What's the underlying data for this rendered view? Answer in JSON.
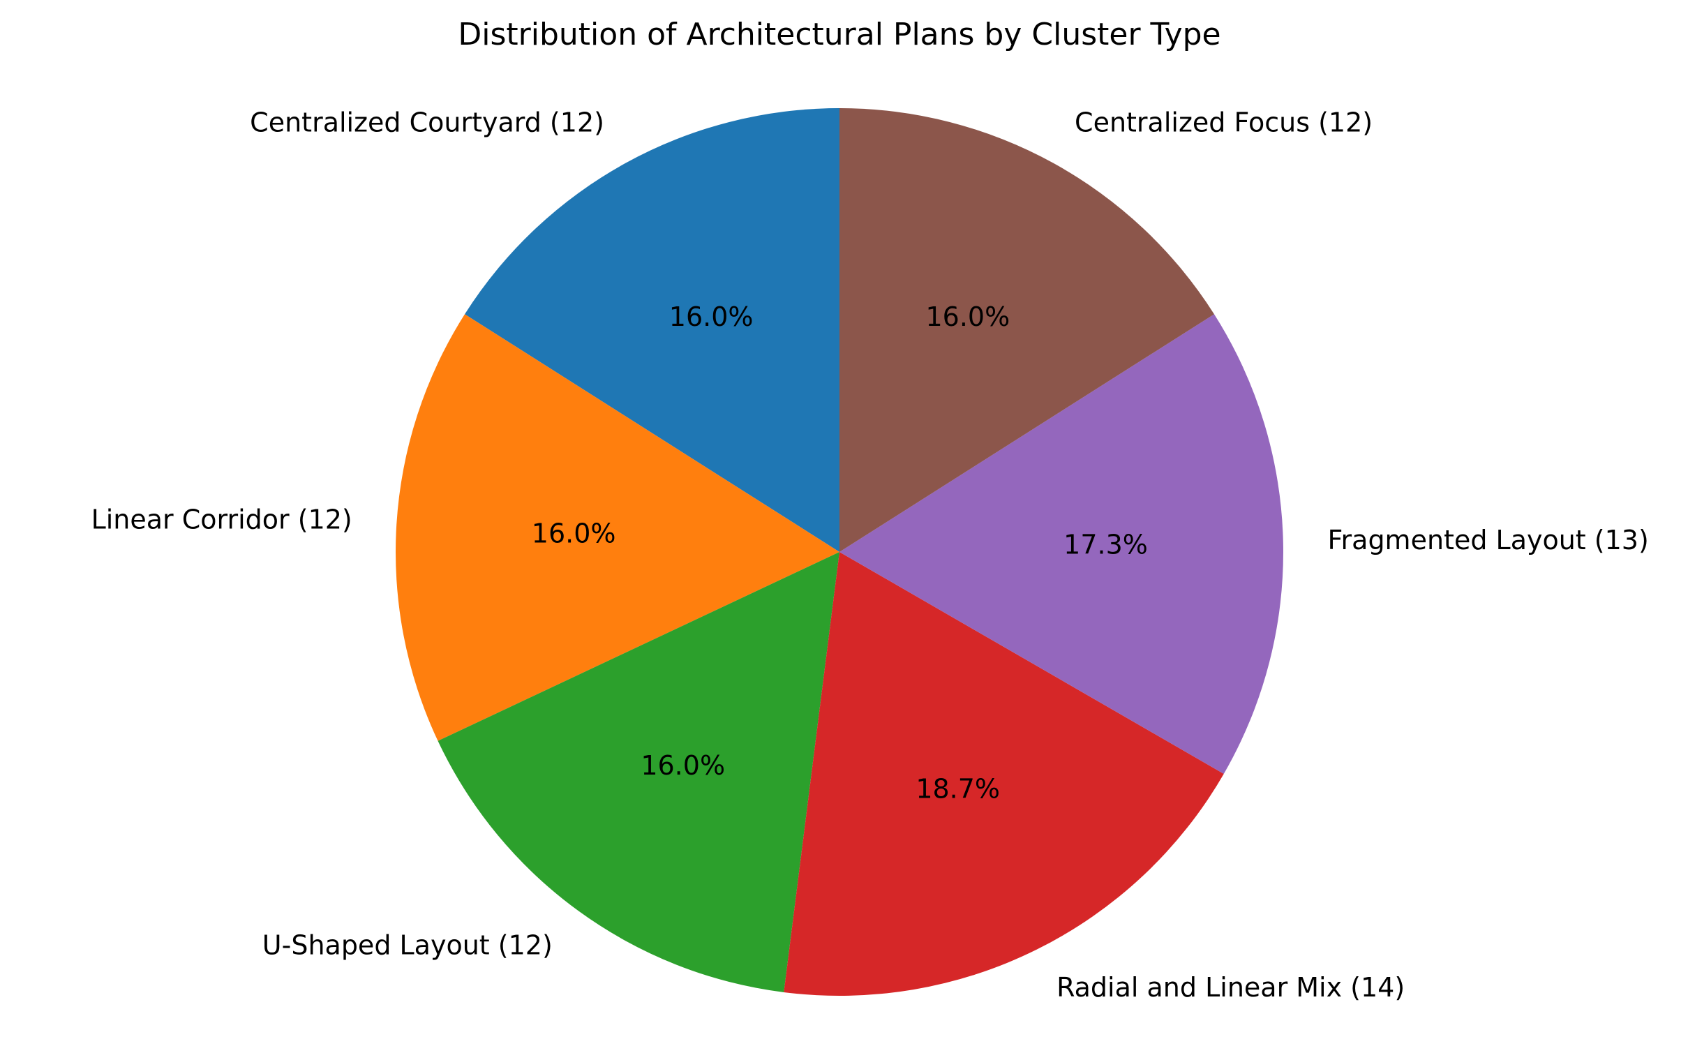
{
  "chart_data": {
    "type": "pie",
    "title": "Distribution of Architectural Plans by Cluster Type",
    "slices": [
      {
        "label": "Centralized Courtyard (12)",
        "value": 12,
        "pct_label": "16.0%",
        "color": "#1f77b4"
      },
      {
        "label": "Linear Corridor (12)",
        "value": 12,
        "pct_label": "16.0%",
        "color": "#ff7f0e"
      },
      {
        "label": "U-Shaped Layout (12)",
        "value": 12,
        "pct_label": "16.0%",
        "color": "#2ca02c"
      },
      {
        "label": "Radial and Linear Mix (14)",
        "value": 14,
        "pct_label": "18.7%",
        "color": "#d62728"
      },
      {
        "label": "Fragmented Layout (13)",
        "value": 13,
        "pct_label": "17.3%",
        "color": "#9467bd"
      },
      {
        "label": "Centralized Focus (12)",
        "value": 12,
        "pct_label": "16.0%",
        "color": "#8c564b"
      }
    ],
    "start_angle": 90,
    "direction": "counterclockwise"
  }
}
